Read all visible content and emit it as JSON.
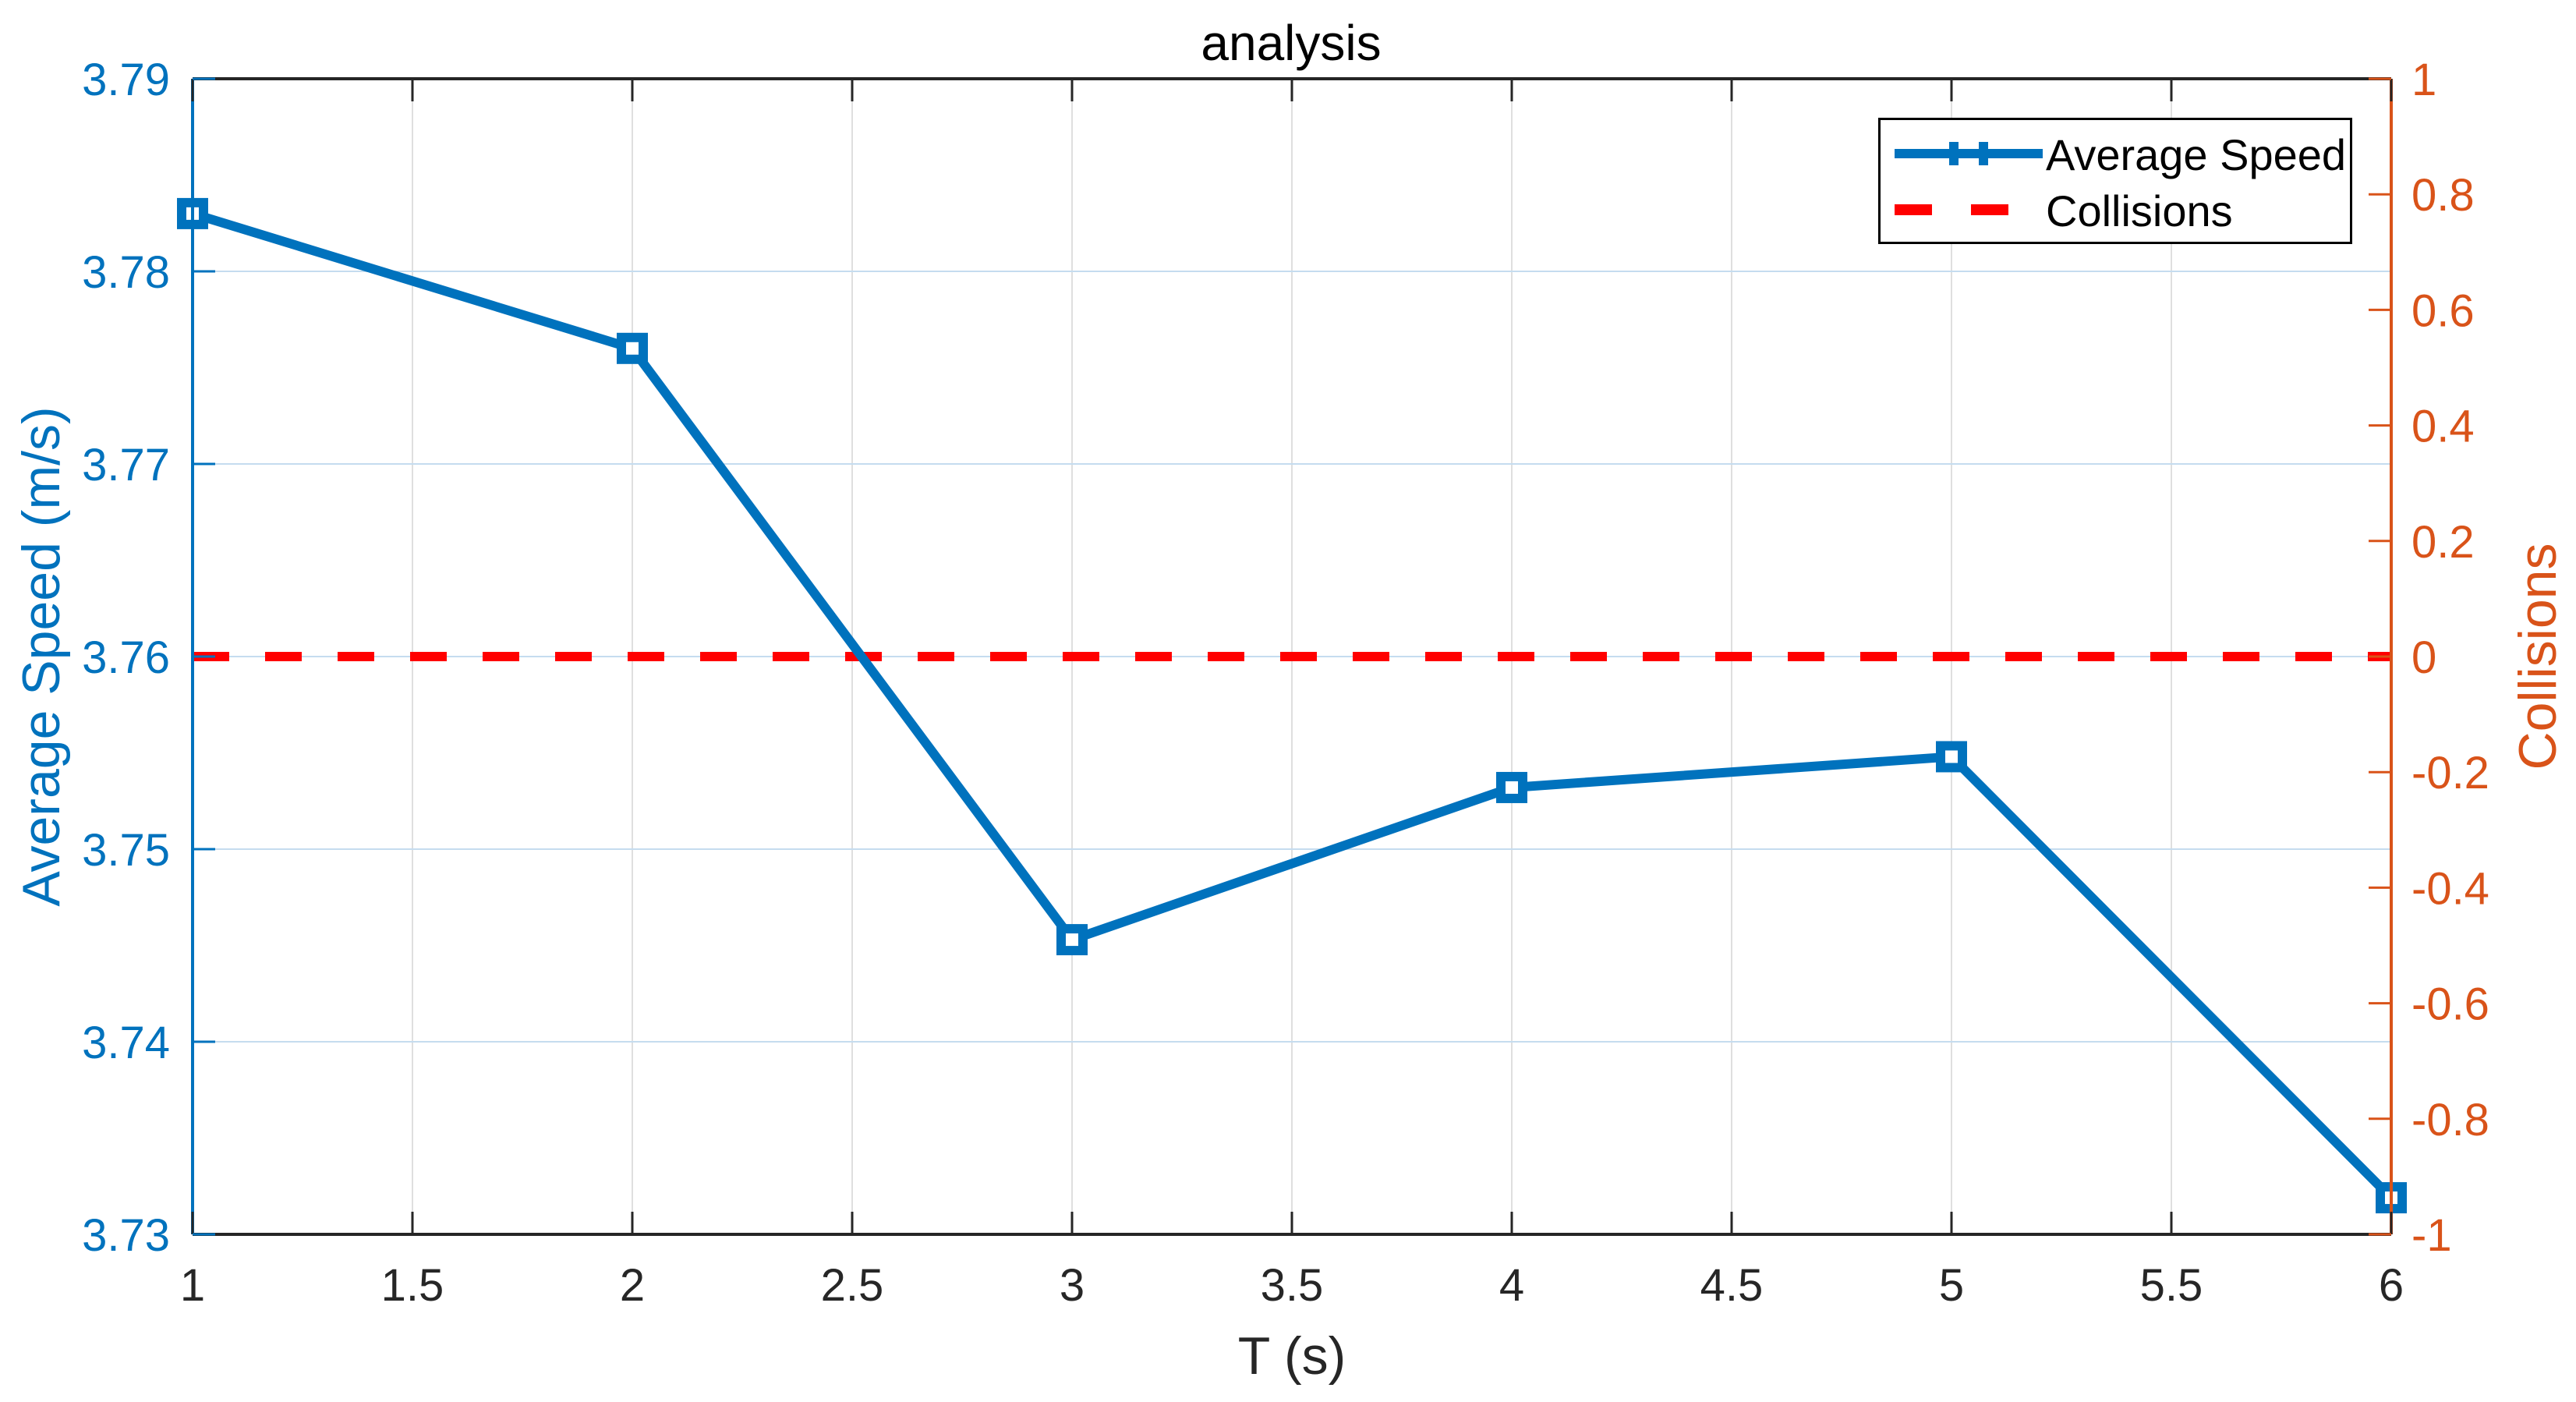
{
  "chart_data": {
    "type": "line",
    "title": "analysis",
    "xlabel": "T (s)",
    "ylabel": "Average Speed (m/s)",
    "ylabel_right": "Collisions",
    "x": [
      1,
      2,
      3,
      4,
      5,
      6
    ],
    "xlim": [
      1,
      6
    ],
    "xticks": [
      "1",
      "1.5",
      "2",
      "2.5",
      "3",
      "3.5",
      "4",
      "4.5",
      "5",
      "5.5",
      "6"
    ],
    "ylim": [
      3.73,
      3.79
    ],
    "yticks": [
      "3.73",
      "3.74",
      "3.75",
      "3.76",
      "3.77",
      "3.78",
      "3.79"
    ],
    "ylim_right": [
      -1,
      1
    ],
    "yticks_right": [
      "-1",
      "-0.8",
      "-0.6",
      "-0.4",
      "-0.2",
      "0",
      "0.2",
      "0.4",
      "0.6",
      "0.8",
      "1"
    ],
    "grid": true,
    "legend_position": "northeast",
    "series": [
      {
        "name": "Average Speed",
        "axis": "left",
        "style": "solid-square-markers",
        "color": "#0072BD",
        "values": [
          3.783,
          3.776,
          3.7453,
          3.7532,
          3.7548,
          3.7319
        ]
      },
      {
        "name": "Collisions",
        "axis": "right",
        "style": "dashed",
        "color": "#FF0000",
        "values": [
          0,
          0,
          0,
          0,
          0,
          0
        ]
      }
    ]
  },
  "colors": {
    "left_axis": "#0072BD",
    "right_axis": "#D95319",
    "grid": "#DFDFDF"
  }
}
